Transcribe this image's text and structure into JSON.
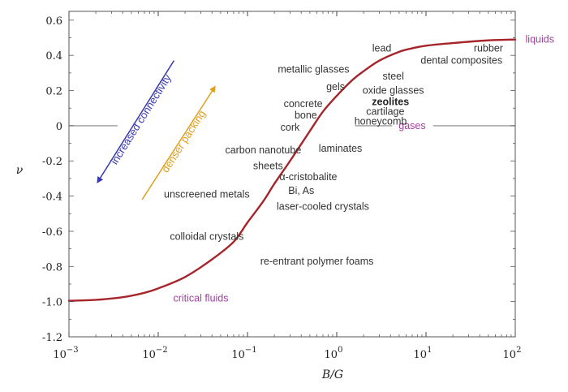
{
  "chart_data": {
    "type": "line",
    "xlabel": "B/G",
    "ylabel": "ν",
    "x_scale": "log",
    "xlim": [
      0.001,
      100
    ],
    "ylim": [
      -1.2,
      0.65
    ],
    "x_ticks": [
      {
        "value": 0.001,
        "base": "10",
        "exp": "−3"
      },
      {
        "value": 0.01,
        "base": "10",
        "exp": "−2"
      },
      {
        "value": 0.1,
        "base": "10",
        "exp": "−1"
      },
      {
        "value": 1,
        "base": "10",
        "exp": "0"
      },
      {
        "value": 10,
        "base": "10",
        "exp": "1"
      },
      {
        "value": 100,
        "base": "10",
        "exp": "2"
      }
    ],
    "y_ticks": [
      {
        "value": 0.6,
        "label": "0.6"
      },
      {
        "value": 0.4,
        "label": "0.4"
      },
      {
        "value": 0.2,
        "label": "0.2"
      },
      {
        "value": 0,
        "label": "0"
      },
      {
        "value": -0.2,
        "label": "-0.2"
      },
      {
        "value": -0.4,
        "label": "-0.4"
      },
      {
        "value": -0.6,
        "label": "-0.6"
      },
      {
        "value": -0.8,
        "label": "-0.8"
      },
      {
        "value": -1.0,
        "label": "-1.0"
      },
      {
        "value": -1.2,
        "label": "-1.2"
      }
    ],
    "grid": false,
    "series": [
      {
        "color": "#a5252a",
        "x": [
          0.001,
          0.002,
          0.004,
          0.007,
          0.01,
          0.02,
          0.04,
          0.07,
          0.1,
          0.15,
          0.2,
          0.3,
          0.5,
          0.7,
          1,
          1.5,
          2,
          3,
          5,
          7,
          10,
          20,
          50,
          100
        ],
        "y": [
          -0.995,
          -0.99,
          -0.975,
          -0.95,
          -0.925,
          -0.86,
          -0.76,
          -0.66,
          -0.55,
          -0.43,
          -0.33,
          -0.2,
          -0.03,
          0.08,
          0.17,
          0.26,
          0.31,
          0.37,
          0.42,
          0.44,
          0.455,
          0.47,
          0.485,
          0.49
        ]
      }
    ],
    "reference_lines": [
      {
        "y": 0,
        "x": [
          0.001,
          0.0035
        ],
        "color": "#9a9a9a"
      },
      {
        "y": 0,
        "x": [
          1.6,
          4.2
        ],
        "color": "#9a9a9a"
      },
      {
        "y": 0,
        "x": [
          12,
          100
        ],
        "color": "#9a9a9a"
      }
    ],
    "annotations": [
      {
        "text": "liquids",
        "x": 130,
        "y": 0.49,
        "color": "#a040a0",
        "anchor": "start"
      },
      {
        "text": "gases",
        "x": 7.0,
        "y": 0,
        "color": "#a040a0",
        "anchor": "middle"
      },
      {
        "text": "critical fluids",
        "x": 0.03,
        "y": -0.98,
        "color": "#a040a0",
        "anchor": "middle"
      },
      {
        "text": "rubber",
        "x": 50,
        "y": 0.44,
        "color": "#333333",
        "anchor": "middle"
      },
      {
        "text": "dental composites",
        "x": 25,
        "y": 0.37,
        "color": "#333333",
        "anchor": "middle"
      },
      {
        "text": "lead",
        "x": 3.2,
        "y": 0.44,
        "color": "#333333",
        "anchor": "middle"
      },
      {
        "text": "steel",
        "x": 4.3,
        "y": 0.28,
        "color": "#333333",
        "anchor": "middle"
      },
      {
        "text": "oxide glasses",
        "x": 4.3,
        "y": 0.2,
        "color": "#333333",
        "anchor": "middle"
      },
      {
        "text": "zeolites",
        "x": 4.0,
        "y": 0.135,
        "color": "#222222",
        "anchor": "middle",
        "bold": true
      },
      {
        "text": "cartilage",
        "x": 3.5,
        "y": 0.08,
        "color": "#333333",
        "anchor": "middle"
      },
      {
        "text": "honeycomb",
        "x": 3.1,
        "y": 0.025,
        "color": "#333333",
        "anchor": "middle"
      },
      {
        "text": "metallic glasses",
        "x": 0.55,
        "y": 0.32,
        "color": "#333333",
        "anchor": "middle"
      },
      {
        "text": "gels",
        "x": 0.97,
        "y": 0.22,
        "color": "#333333",
        "anchor": "middle"
      },
      {
        "text": "concrete",
        "x": 0.42,
        "y": 0.125,
        "color": "#333333",
        "anchor": "middle"
      },
      {
        "text": "bone",
        "x": 0.45,
        "y": 0.06,
        "color": "#333333",
        "anchor": "middle"
      },
      {
        "text": "cork",
        "x": 0.3,
        "y": -0.01,
        "color": "#333333",
        "anchor": "middle"
      },
      {
        "text": "laminates",
        "x": 1.1,
        "y": -0.13,
        "color": "#333333",
        "anchor": "middle"
      },
      {
        "text": "carbon nanotube",
        "x": 0.15,
        "y": -0.14,
        "color": "#333333",
        "anchor": "middle"
      },
      {
        "text": "sheets",
        "x": 0.17,
        "y": -0.23,
        "color": "#333333",
        "anchor": "middle"
      },
      {
        "text": "α-cristobalite",
        "x": 0.48,
        "y": -0.29,
        "color": "#333333",
        "anchor": "middle"
      },
      {
        "text": "Bi, As",
        "x": 0.4,
        "y": -0.37,
        "color": "#333333",
        "anchor": "middle"
      },
      {
        "text": "laser-cooled crystals",
        "x": 0.7,
        "y": -0.46,
        "color": "#333333",
        "anchor": "middle"
      },
      {
        "text": "unscreened metals",
        "x": 0.035,
        "y": -0.39,
        "color": "#333333",
        "anchor": "middle"
      },
      {
        "text": "colloidal crystals",
        "x": 0.035,
        "y": -0.63,
        "color": "#333333",
        "anchor": "middle"
      },
      {
        "text": "re-entrant polymer foams",
        "x": 0.6,
        "y": -0.77,
        "color": "#333333",
        "anchor": "middle"
      }
    ],
    "arrows": [
      {
        "text": "increased connectivity",
        "from": [
          0.015,
          0.37
        ],
        "to": [
          0.0021,
          -0.32
        ],
        "color": "#3a3ab0"
      },
      {
        "text": "denser packing",
        "from": [
          0.0066,
          -0.42
        ],
        "to": [
          0.043,
          0.22
        ],
        "color": "#e0a020"
      }
    ]
  }
}
